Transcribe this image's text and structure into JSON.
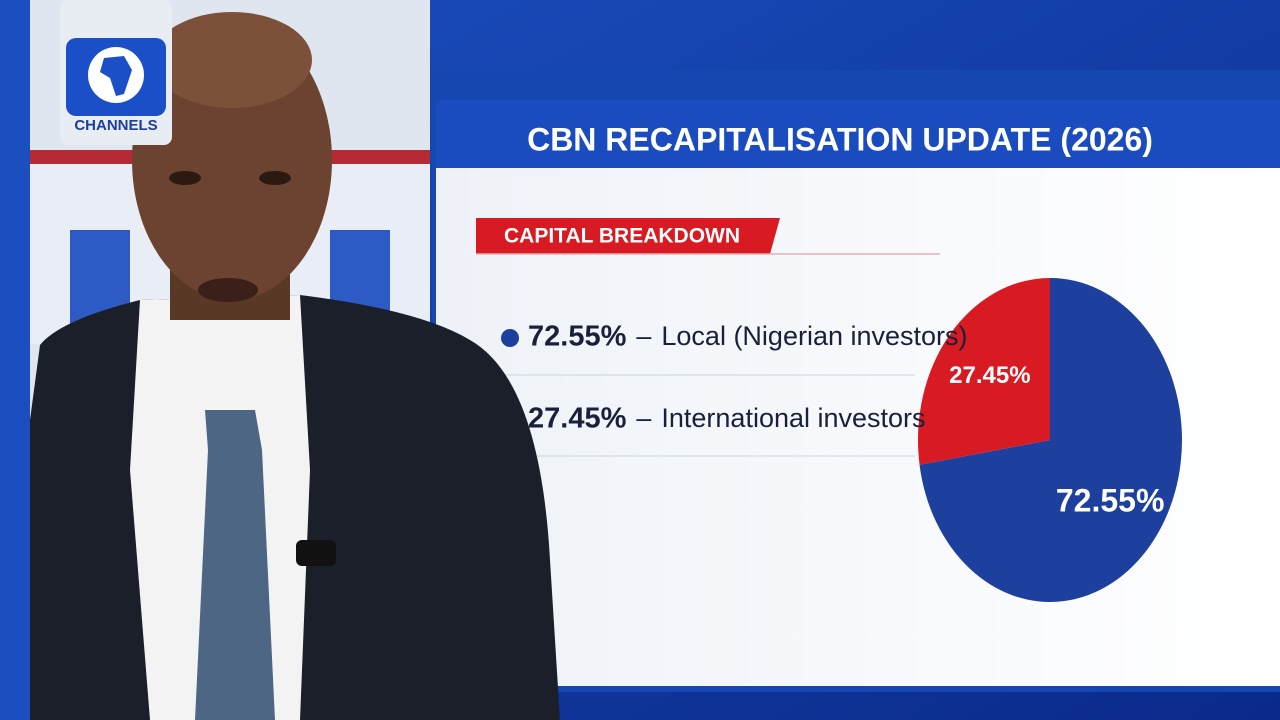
{
  "logo": "CHANNELS",
  "chart_data": {
    "type": "pie",
    "title": "CBN RECAPITALISATION UPDATE (2026)",
    "subtitle": "CAPITAL BREAKDOWN",
    "legend_separator": "–",
    "categories": [
      "Local (Nigerian investors)",
      "International investors"
    ],
    "values": [
      72.55,
      27.45
    ],
    "value_labels": [
      "72.55%",
      "27.45%"
    ],
    "colors": [
      "#1d3f9e",
      "#d81a22"
    ]
  }
}
